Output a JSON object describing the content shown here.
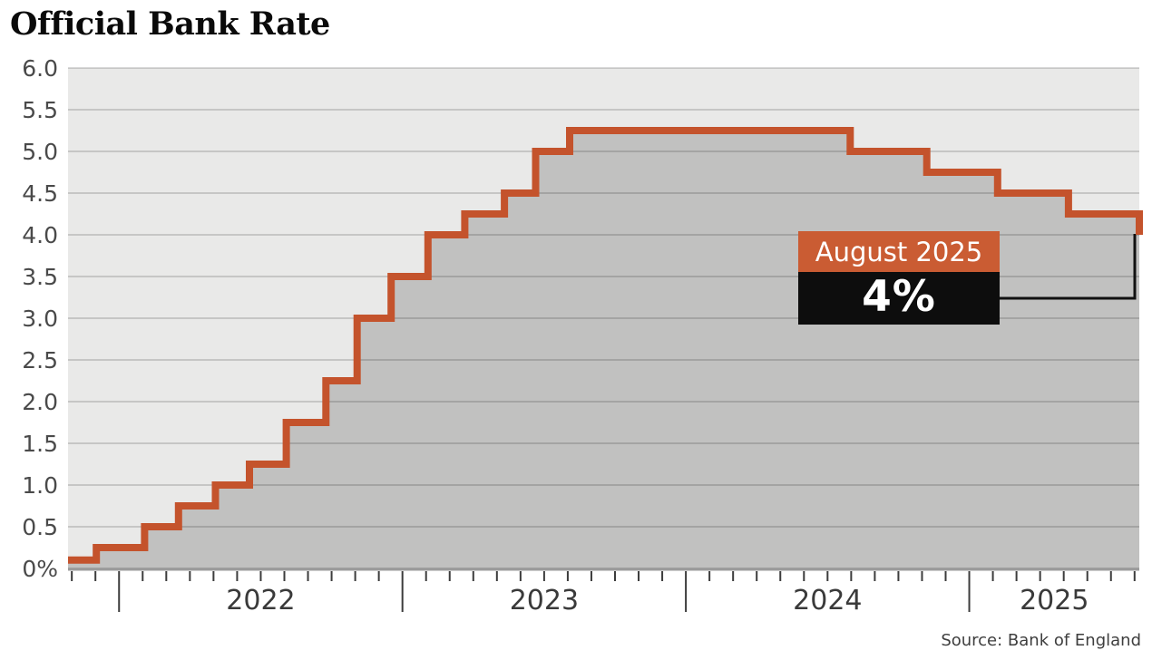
{
  "title": "Official Bank Rate",
  "source": "Source: Bank of England",
  "annotation": {
    "label": "August 2025",
    "value": "4%"
  },
  "colors": {
    "line": "#c4532c",
    "area_fill": "#c1c1c0",
    "plot_background": "#e9e9e8",
    "gridline": "rgba(0,0,0,0.15)",
    "baseline": "#9b9b9b",
    "tick": "#3c3c3c",
    "axis_text": "#4a4a4a",
    "year_text": "#3a3a3a",
    "annotation_header_bg": "#ca5c33",
    "annotation_value_bg": "#0d0d0d",
    "connector": "#111111"
  },
  "chart_data": {
    "type": "area",
    "subtype": "step",
    "title": "Official Bank Rate",
    "unit": "%",
    "series": [
      {
        "name": "Official Bank Rate",
        "points_decimal_year_rate": [
          [
            2021.82,
            0.1
          ],
          [
            2021.92,
            0.25
          ],
          [
            2022.09,
            0.5
          ],
          [
            2022.21,
            0.75
          ],
          [
            2022.34,
            1.0
          ],
          [
            2022.46,
            1.25
          ],
          [
            2022.59,
            1.75
          ],
          [
            2022.73,
            2.25
          ],
          [
            2022.84,
            3.0
          ],
          [
            2022.96,
            3.5
          ],
          [
            2023.09,
            4.0
          ],
          [
            2023.22,
            4.25
          ],
          [
            2023.36,
            4.5
          ],
          [
            2023.47,
            5.0
          ],
          [
            2023.59,
            5.25
          ],
          [
            2024.58,
            5.0
          ],
          [
            2024.85,
            4.75
          ],
          [
            2025.1,
            4.5
          ],
          [
            2025.35,
            4.25
          ],
          [
            2025.6,
            4.0
          ]
        ]
      }
    ],
    "x_domain": [
      2021.82,
      2025.6
    ],
    "ylim": [
      0,
      6
    ],
    "y_ticks": {
      "values": [
        0,
        0.5,
        1,
        1.5,
        2,
        2.5,
        3,
        3.5,
        4,
        4.5,
        5,
        5.5,
        6
      ],
      "labels": [
        "0%",
        "0.5",
        "1.0",
        "1.5",
        "2.0",
        "2.5",
        "3.0",
        "3.5",
        "4.0",
        "4.5",
        "5.0",
        "5.5",
        "6.0"
      ]
    },
    "x_ticks": {
      "year_labels": [
        "2022",
        "2023",
        "2024",
        "2025"
      ],
      "year_values": [
        2022,
        2023,
        2024,
        2025
      ],
      "minor_ticks": "monthly",
      "minor_start_month": "2021-11",
      "minor_end_month": "2025-08"
    },
    "grid": "horizontal",
    "legend": "none",
    "final_point": {
      "label": "August 2025",
      "value_text": "4%",
      "value": 4.0
    }
  }
}
